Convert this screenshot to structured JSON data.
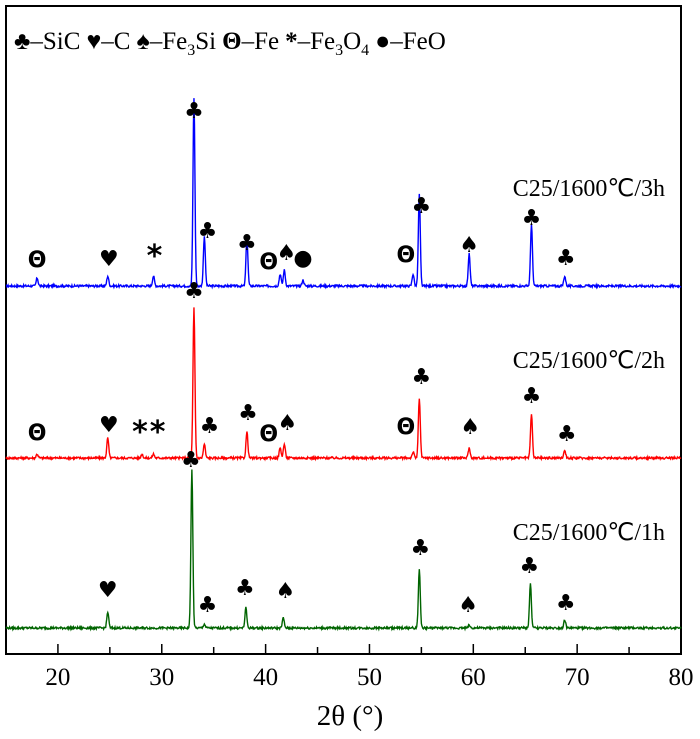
{
  "chart_data": {
    "type": "line",
    "xlabel": "2θ (°)",
    "xlim": [
      15,
      80
    ],
    "xticks": [
      20,
      30,
      40,
      50,
      60,
      70,
      80
    ],
    "yaxis_shown": false,
    "grid": false,
    "legend": {
      "placement": "top",
      "entries": [
        {
          "symbol": "♣",
          "label": "–SiC"
        },
        {
          "symbol": "♥",
          "label": "–C"
        },
        {
          "symbol": "♠",
          "label": "–Fe",
          "sub": "3",
          "label_tail": "Si"
        },
        {
          "symbol": "Θ",
          "label": "–Fe"
        },
        {
          "symbol": "*",
          "label": "–Fe",
          "sub": "3",
          "label_tail": "O",
          "sub2": "4"
        },
        {
          "symbol": "●",
          "label": "–FeO"
        }
      ]
    },
    "series": [
      {
        "name": "C25/1600℃/3h",
        "color": "#0000ff",
        "baseline": 286,
        "peaks": [
          {
            "x": 18.0,
            "h": 8
          },
          {
            "x": 24.8,
            "h": 10
          },
          {
            "x": 29.2,
            "h": 10
          },
          {
            "x": 33.1,
            "h": 188
          },
          {
            "x": 34.1,
            "h": 50
          },
          {
            "x": 38.2,
            "h": 48
          },
          {
            "x": 41.4,
            "h": 12
          },
          {
            "x": 41.8,
            "h": 16
          },
          {
            "x": 43.6,
            "h": 6
          },
          {
            "x": 54.2,
            "h": 12
          },
          {
            "x": 54.8,
            "h": 92
          },
          {
            "x": 59.6,
            "h": 32
          },
          {
            "x": 65.6,
            "h": 62
          },
          {
            "x": 68.8,
            "h": 10
          }
        ],
        "label": "C25/1600℃/3h",
        "annotations": [
          {
            "sym": "Θ",
            "x": 18.0,
            "y": 267
          },
          {
            "sym": "♥",
            "x": 24.9,
            "y": 266
          },
          {
            "sym": "*",
            "x": 29.3,
            "y": 266
          },
          {
            "sym": "♣",
            "x": 33.1,
            "y": 118
          },
          {
            "sym": "♣",
            "x": 34.4,
            "y": 238
          },
          {
            "sym": "♣",
            "x": 38.2,
            "y": 250
          },
          {
            "sym": "Θ",
            "x": 40.3,
            "y": 269
          },
          {
            "sym": "♠",
            "x": 42.0,
            "y": 260
          },
          {
            "sym": "●",
            "x": 43.6,
            "y": 265
          },
          {
            "sym": "Θ",
            "x": 53.5,
            "y": 262
          },
          {
            "sym": "♣",
            "x": 55.0,
            "y": 213
          },
          {
            "sym": "♠",
            "x": 59.6,
            "y": 252
          },
          {
            "sym": "♣",
            "x": 65.6,
            "y": 225
          },
          {
            "sym": "♣",
            "x": 68.9,
            "y": 265
          }
        ]
      },
      {
        "name": "C25/1600℃/2h",
        "color": "#ff0000",
        "baseline": 458,
        "peaks": [
          {
            "x": 18.0,
            "h": 4
          },
          {
            "x": 24.8,
            "h": 20
          },
          {
            "x": 28.1,
            "h": 4
          },
          {
            "x": 29.2,
            "h": 4
          },
          {
            "x": 33.1,
            "h": 150
          },
          {
            "x": 34.1,
            "h": 14
          },
          {
            "x": 38.2,
            "h": 26
          },
          {
            "x": 41.4,
            "h": 10
          },
          {
            "x": 41.8,
            "h": 14
          },
          {
            "x": 54.2,
            "h": 6
          },
          {
            "x": 54.8,
            "h": 60
          },
          {
            "x": 59.6,
            "h": 10
          },
          {
            "x": 65.6,
            "h": 44
          },
          {
            "x": 68.8,
            "h": 8
          }
        ],
        "label": "C25/1600℃/2h",
        "annotations": [
          {
            "sym": "Θ",
            "x": 18.0,
            "y": 440
          },
          {
            "sym": "♥",
            "x": 24.9,
            "y": 432
          },
          {
            "sym": "*",
            "x": 27.9,
            "y": 442
          },
          {
            "sym": "*",
            "x": 29.6,
            "y": 442
          },
          {
            "sym": "♣",
            "x": 33.1,
            "y": 298
          },
          {
            "sym": "♣",
            "x": 34.6,
            "y": 433
          },
          {
            "sym": "♣",
            "x": 38.3,
            "y": 420
          },
          {
            "sym": "Θ",
            "x": 40.3,
            "y": 441
          },
          {
            "sym": "♠",
            "x": 42.1,
            "y": 430
          },
          {
            "sym": "Θ",
            "x": 53.5,
            "y": 434
          },
          {
            "sym": "♣",
            "x": 55.0,
            "y": 384
          },
          {
            "sym": "♠",
            "x": 59.7,
            "y": 434
          },
          {
            "sym": "♣",
            "x": 65.6,
            "y": 403
          },
          {
            "sym": "♣",
            "x": 69.0,
            "y": 441
          }
        ]
      },
      {
        "name": "C25/1600℃/1h",
        "color": "#006400",
        "baseline": 628,
        "peaks": [
          {
            "x": 24.8,
            "h": 16
          },
          {
            "x": 32.9,
            "h": 158
          },
          {
            "x": 34.1,
            "h": 4
          },
          {
            "x": 38.1,
            "h": 20
          },
          {
            "x": 41.7,
            "h": 10
          },
          {
            "x": 54.8,
            "h": 58
          },
          {
            "x": 59.6,
            "h": 3
          },
          {
            "x": 65.5,
            "h": 44
          },
          {
            "x": 68.8,
            "h": 8
          }
        ],
        "label": "C25/1600℃/1h",
        "annotations": [
          {
            "sym": "♥",
            "x": 24.8,
            "y": 597
          },
          {
            "sym": "♣",
            "x": 32.8,
            "y": 467
          },
          {
            "sym": "♣",
            "x": 34.4,
            "y": 612
          },
          {
            "sym": "♣",
            "x": 38.0,
            "y": 595
          },
          {
            "sym": "♠",
            "x": 41.9,
            "y": 598
          },
          {
            "sym": "♣",
            "x": 54.9,
            "y": 555
          },
          {
            "sym": "♠",
            "x": 59.5,
            "y": 612
          },
          {
            "sym": "♣",
            "x": 65.4,
            "y": 573
          },
          {
            "sym": "♣",
            "x": 68.9,
            "y": 610
          }
        ]
      }
    ]
  }
}
